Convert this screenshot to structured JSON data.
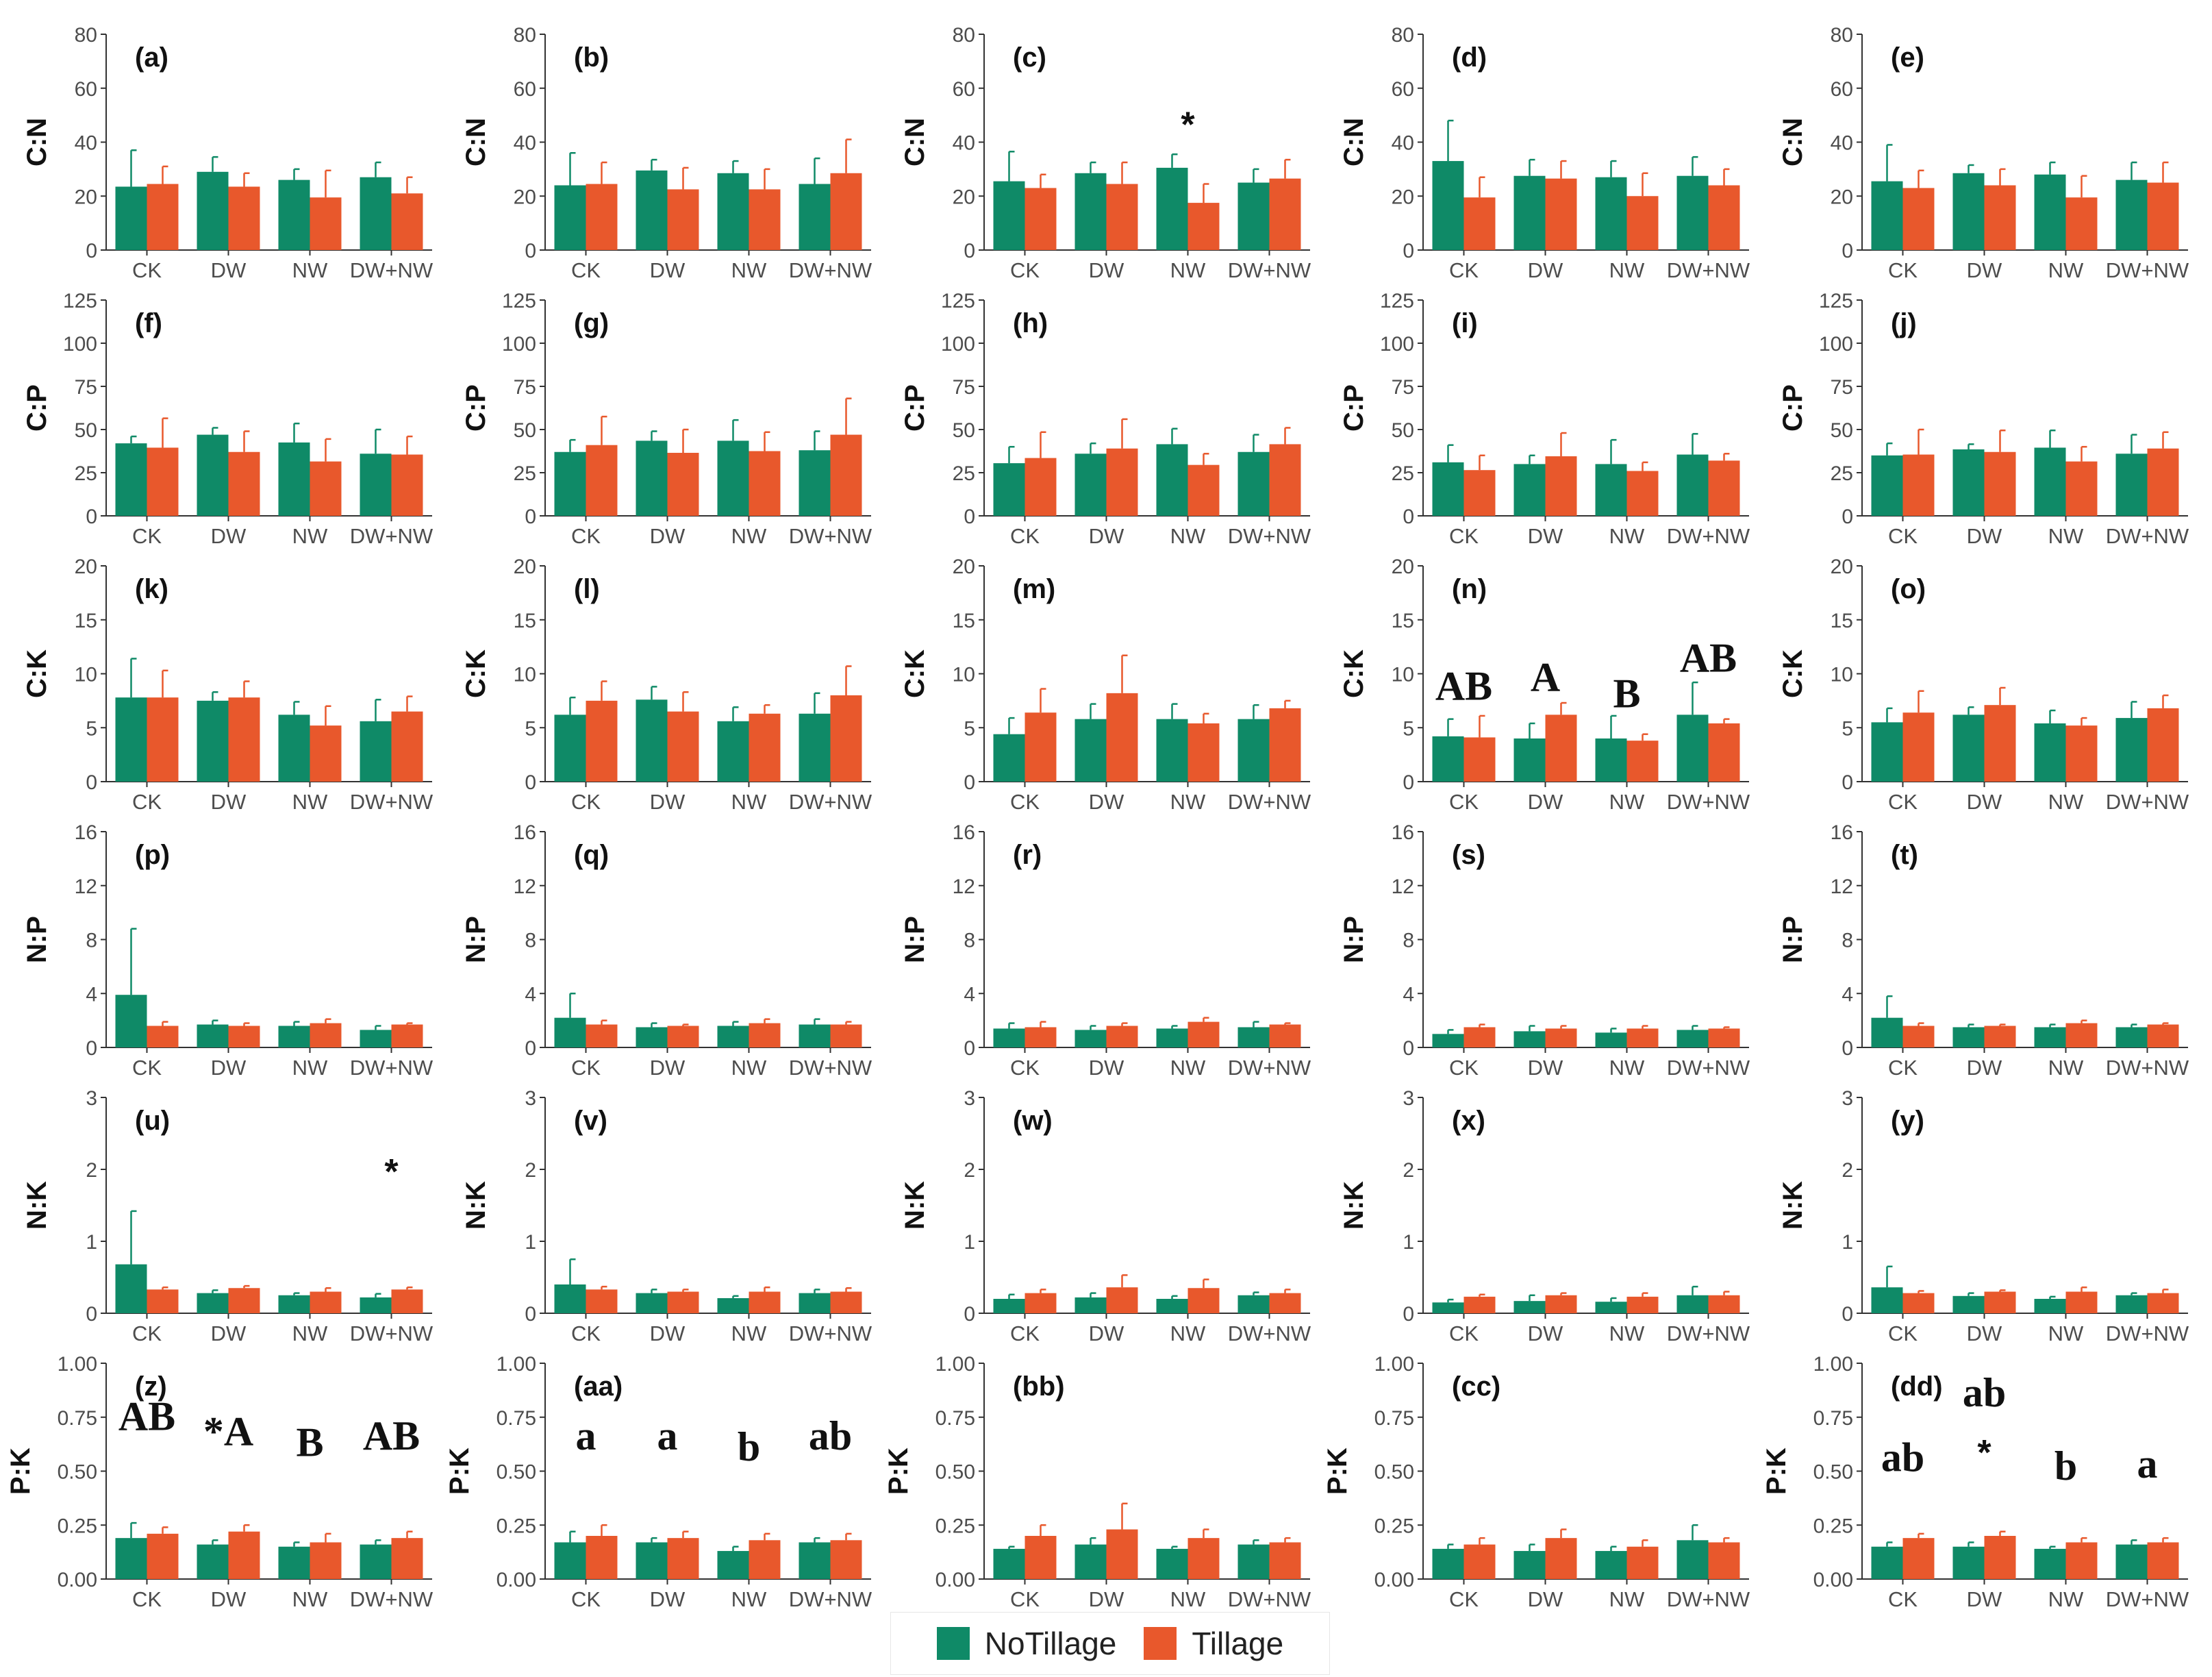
{
  "legend": {
    "items": [
      {
        "label": "NoTillage",
        "color": "#0f8a67"
      },
      {
        "label": "Tillage",
        "color": "#e8582c"
      }
    ]
  },
  "chart_data": {
    "type": "bar",
    "categories": [
      "CK",
      "DW",
      "NW",
      "DW+NW"
    ],
    "series_names": [
      "NoTillage",
      "Tillage"
    ],
    "rows": [
      {
        "ylabel": "C:N",
        "ylim": [
          0,
          80
        ],
        "ticks": [
          0,
          20,
          40,
          60,
          80
        ],
        "tick_labels": [
          "0",
          "20",
          "40",
          "60",
          "80"
        ]
      },
      {
        "ylabel": "C:P",
        "ylim": [
          0,
          125
        ],
        "ticks": [
          0,
          25,
          50,
          75,
          100,
          125
        ],
        "tick_labels": [
          "0",
          "25",
          "50",
          "75",
          "100",
          "125"
        ]
      },
      {
        "ylabel": "C:K",
        "ylim": [
          0,
          20
        ],
        "ticks": [
          0,
          5,
          10,
          15,
          20
        ],
        "tick_labels": [
          "0",
          "5",
          "10",
          "15",
          "20"
        ]
      },
      {
        "ylabel": "N:P",
        "ylim": [
          0,
          16
        ],
        "ticks": [
          0,
          4,
          8,
          12,
          16
        ],
        "tick_labels": [
          "0",
          "4",
          "8",
          "12",
          "16"
        ]
      },
      {
        "ylabel": "N:K",
        "ylim": [
          0,
          3
        ],
        "ticks": [
          0,
          1,
          2,
          3
        ],
        "tick_labels": [
          "0",
          "1",
          "2",
          "3"
        ]
      },
      {
        "ylabel": "P:K",
        "ylim": [
          0,
          1
        ],
        "ticks": [
          0,
          0.25,
          0.5,
          0.75,
          1
        ],
        "tick_labels": [
          "0.00",
          "0.25",
          "0.50",
          "0.75",
          "1.00"
        ]
      }
    ],
    "panels": [
      {
        "label": "(a)",
        "row": 0,
        "col": 0,
        "notill": [
          23.5,
          29,
          26,
          27
        ],
        "notill_err": [
          13.5,
          5.5,
          4,
          5.5
        ],
        "till": [
          24.5,
          23.5,
          19.5,
          21
        ],
        "till_err": [
          6.5,
          5,
          10,
          6
        ],
        "annotations": []
      },
      {
        "label": "(b)",
        "row": 0,
        "col": 1,
        "notill": [
          24,
          29.5,
          28.5,
          24.5
        ],
        "notill_err": [
          12,
          4,
          4.5,
          9.5
        ],
        "till": [
          24.5,
          22.5,
          22.5,
          28.5
        ],
        "till_err": [
          8,
          8,
          7.5,
          12.5
        ],
        "annotations": []
      },
      {
        "label": "(c)",
        "row": 0,
        "col": 2,
        "notill": [
          25.5,
          28.5,
          30.5,
          25
        ],
        "notill_err": [
          11,
          4,
          5,
          5
        ],
        "till": [
          23,
          24.5,
          17.5,
          26.5
        ],
        "till_err": [
          5,
          8,
          7,
          7
        ],
        "annotations": [
          {
            "text": "*",
            "cat": 2,
            "y": 42,
            "bold": false
          }
        ]
      },
      {
        "label": "(d)",
        "row": 0,
        "col": 3,
        "notill": [
          33,
          27.5,
          27,
          27.5
        ],
        "notill_err": [
          15,
          6,
          6,
          7
        ],
        "till": [
          19.5,
          26.5,
          20,
          24
        ],
        "till_err": [
          7.5,
          6.5,
          8.5,
          6
        ],
        "annotations": []
      },
      {
        "label": "(e)",
        "row": 0,
        "col": 4,
        "notill": [
          25.5,
          28.5,
          28,
          26
        ],
        "notill_err": [
          13.5,
          3,
          4.5,
          6.5
        ],
        "till": [
          23,
          24,
          19.5,
          25
        ],
        "till_err": [
          6.5,
          6,
          8,
          7.5
        ],
        "annotations": []
      },
      {
        "label": "(f)",
        "row": 1,
        "col": 0,
        "notill": [
          42,
          47,
          42.5,
          36
        ],
        "notill_err": [
          4,
          4,
          11,
          14
        ],
        "till": [
          39.5,
          37,
          31.5,
          35.5
        ],
        "till_err": [
          17,
          12,
          13,
          10.5
        ],
        "annotations": []
      },
      {
        "label": "(g)",
        "row": 1,
        "col": 1,
        "notill": [
          37,
          43.5,
          43.5,
          38
        ],
        "notill_err": [
          7,
          5.5,
          12,
          11
        ],
        "till": [
          41,
          36.5,
          37.5,
          47
        ],
        "till_err": [
          16.5,
          13.5,
          11,
          21
        ],
        "annotations": []
      },
      {
        "label": "(h)",
        "row": 1,
        "col": 2,
        "notill": [
          30.5,
          36,
          41.5,
          37
        ],
        "notill_err": [
          9.5,
          6,
          9,
          10
        ],
        "till": [
          33.5,
          39,
          29.5,
          41.5
        ],
        "till_err": [
          15,
          17,
          6.5,
          9.5
        ],
        "annotations": []
      },
      {
        "label": "(i)",
        "row": 1,
        "col": 3,
        "notill": [
          31,
          30,
          30,
          35.5
        ],
        "notill_err": [
          10,
          5,
          14,
          12
        ],
        "till": [
          26.5,
          34.5,
          26,
          32
        ],
        "till_err": [
          8.5,
          13.5,
          5,
          4
        ],
        "annotations": []
      },
      {
        "label": "(j)",
        "row": 1,
        "col": 4,
        "notill": [
          35,
          38.5,
          39.5,
          36
        ],
        "notill_err": [
          7,
          3,
          10,
          11
        ],
        "till": [
          35.5,
          37,
          31.5,
          39
        ],
        "till_err": [
          14.5,
          12.5,
          8.5,
          9.5
        ],
        "annotations": []
      },
      {
        "label": "(k)",
        "row": 2,
        "col": 0,
        "notill": [
          7.8,
          7.5,
          6.2,
          5.6
        ],
        "notill_err": [
          3.6,
          0.8,
          1.2,
          2
        ],
        "till": [
          7.8,
          7.8,
          5.2,
          6.5
        ],
        "till_err": [
          2.5,
          1.5,
          1.8,
          1.4
        ],
        "annotations": []
      },
      {
        "label": "(l)",
        "row": 2,
        "col": 1,
        "notill": [
          6.2,
          7.6,
          5.6,
          6.3
        ],
        "notill_err": [
          1.6,
          1.2,
          1.3,
          1.9
        ],
        "till": [
          7.5,
          6.5,
          6.3,
          8
        ],
        "till_err": [
          1.8,
          1.8,
          0.8,
          2.7
        ],
        "annotations": []
      },
      {
        "label": "(m)",
        "row": 2,
        "col": 2,
        "notill": [
          4.4,
          5.8,
          5.8,
          5.8
        ],
        "notill_err": [
          1.5,
          1.4,
          1.4,
          1.3
        ],
        "till": [
          6.4,
          8.2,
          5.4,
          6.8
        ],
        "till_err": [
          2.2,
          3.5,
          0.9,
          0.7
        ],
        "annotations": []
      },
      {
        "label": "(n)",
        "row": 2,
        "col": 3,
        "notill": [
          4.2,
          4,
          4,
          6.2
        ],
        "notill_err": [
          1.6,
          1.4,
          2.1,
          3
        ],
        "till": [
          4.1,
          6.2,
          3.8,
          5.4
        ],
        "till_err": [
          2,
          1.1,
          0.6,
          0.4
        ],
        "annotations": [
          {
            "text": "AB",
            "cat": 0,
            "y": 7.6,
            "bold": true
          },
          {
            "text": "A",
            "cat": 1,
            "y": 8.4,
            "bold": true
          },
          {
            "text": "B",
            "cat": 2,
            "y": 6.9,
            "bold": true
          },
          {
            "text": "AB",
            "cat": 3,
            "y": 10.2,
            "bold": true
          }
        ]
      },
      {
        "label": "(o)",
        "row": 2,
        "col": 4,
        "notill": [
          5.5,
          6.2,
          5.4,
          5.9
        ],
        "notill_err": [
          1.3,
          0.7,
          1.2,
          1.5
        ],
        "till": [
          6.4,
          7.1,
          5.2,
          6.8
        ],
        "till_err": [
          2,
          1.6,
          0.7,
          1.2
        ],
        "annotations": []
      },
      {
        "label": "(p)",
        "row": 3,
        "col": 0,
        "notill": [
          3.9,
          1.7,
          1.6,
          1.3
        ],
        "notill_err": [
          4.9,
          0.3,
          0.3,
          0.3
        ],
        "till": [
          1.6,
          1.6,
          1.8,
          1.7
        ],
        "till_err": [
          0.3,
          0.2,
          0.3,
          0.1
        ],
        "annotations": []
      },
      {
        "label": "(q)",
        "row": 3,
        "col": 1,
        "notill": [
          2.2,
          1.5,
          1.6,
          1.7
        ],
        "notill_err": [
          1.8,
          0.3,
          0.3,
          0.4
        ],
        "till": [
          1.7,
          1.6,
          1.8,
          1.7
        ],
        "till_err": [
          0.3,
          0.1,
          0.3,
          0.2
        ],
        "annotations": []
      },
      {
        "label": "(r)",
        "row": 3,
        "col": 2,
        "notill": [
          1.4,
          1.3,
          1.4,
          1.5
        ],
        "notill_err": [
          0.4,
          0.3,
          0.2,
          0.4
        ],
        "till": [
          1.5,
          1.6,
          1.9,
          1.7
        ],
        "till_err": [
          0.4,
          0.2,
          0.3,
          0.1
        ],
        "annotations": []
      },
      {
        "label": "(s)",
        "row": 3,
        "col": 3,
        "notill": [
          1,
          1.2,
          1.1,
          1.3
        ],
        "notill_err": [
          0.3,
          0.4,
          0.3,
          0.3
        ],
        "till": [
          1.5,
          1.4,
          1.4,
          1.4
        ],
        "till_err": [
          0.2,
          0.2,
          0.2,
          0.1
        ],
        "annotations": []
      },
      {
        "label": "(t)",
        "row": 3,
        "col": 4,
        "notill": [
          2.2,
          1.5,
          1.5,
          1.5
        ],
        "notill_err": [
          1.6,
          0.2,
          0.2,
          0.2
        ],
        "till": [
          1.6,
          1.6,
          1.8,
          1.7
        ],
        "till_err": [
          0.2,
          0.1,
          0.2,
          0.1
        ],
        "annotations": []
      },
      {
        "label": "(u)",
        "row": 4,
        "col": 0,
        "notill": [
          0.68,
          0.28,
          0.25,
          0.22
        ],
        "notill_err": [
          0.74,
          0.04,
          0.03,
          0.05
        ],
        "till": [
          0.33,
          0.35,
          0.3,
          0.33
        ],
        "till_err": [
          0.03,
          0.03,
          0.05,
          0.03
        ],
        "annotations": [
          {
            "text": "*",
            "cat": 3,
            "y": 1.8,
            "bold": false
          }
        ]
      },
      {
        "label": "(v)",
        "row": 4,
        "col": 1,
        "notill": [
          0.4,
          0.28,
          0.21,
          0.28
        ],
        "notill_err": [
          0.35,
          0.05,
          0.03,
          0.05
        ],
        "till": [
          0.33,
          0.3,
          0.3,
          0.3
        ],
        "till_err": [
          0.04,
          0.03,
          0.06,
          0.05
        ],
        "annotations": []
      },
      {
        "label": "(w)",
        "row": 4,
        "col": 2,
        "notill": [
          0.2,
          0.22,
          0.2,
          0.25
        ],
        "notill_err": [
          0.06,
          0.06,
          0.04,
          0.04
        ],
        "till": [
          0.28,
          0.36,
          0.35,
          0.28
        ],
        "till_err": [
          0.05,
          0.17,
          0.12,
          0.05
        ],
        "annotations": []
      },
      {
        "label": "(x)",
        "row": 4,
        "col": 3,
        "notill": [
          0.15,
          0.17,
          0.16,
          0.25
        ],
        "notill_err": [
          0.04,
          0.08,
          0.05,
          0.12
        ],
        "till": [
          0.23,
          0.25,
          0.23,
          0.25
        ],
        "till_err": [
          0.03,
          0.03,
          0.05,
          0.05
        ],
        "annotations": []
      },
      {
        "label": "(y)",
        "row": 4,
        "col": 4,
        "notill": [
          0.36,
          0.24,
          0.2,
          0.25
        ],
        "notill_err": [
          0.29,
          0.04,
          0.03,
          0.03
        ],
        "till": [
          0.28,
          0.3,
          0.3,
          0.28
        ],
        "till_err": [
          0.03,
          0.02,
          0.06,
          0.05
        ],
        "annotations": []
      },
      {
        "label": "(z)",
        "row": 5,
        "col": 0,
        "notill": [
          0.19,
          0.16,
          0.15,
          0.16
        ],
        "notill_err": [
          0.07,
          0.02,
          0.02,
          0.02
        ],
        "till": [
          0.21,
          0.22,
          0.17,
          0.19
        ],
        "till_err": [
          0.03,
          0.03,
          0.04,
          0.03
        ],
        "annotations": [
          {
            "text": "AB",
            "cat": 0,
            "y": 0.69,
            "bold": true
          },
          {
            "text": "*A",
            "cat": 1,
            "y": 0.62,
            "bold": true
          },
          {
            "text": "B",
            "cat": 2,
            "y": 0.57,
            "bold": true
          },
          {
            "text": "AB",
            "cat": 3,
            "y": 0.6,
            "bold": true
          }
        ]
      },
      {
        "label": "(aa)",
        "row": 5,
        "col": 1,
        "notill": [
          0.17,
          0.17,
          0.13,
          0.17
        ],
        "notill_err": [
          0.05,
          0.02,
          0.02,
          0.02
        ],
        "till": [
          0.2,
          0.19,
          0.18,
          0.18
        ],
        "till_err": [
          0.05,
          0.03,
          0.03,
          0.03
        ],
        "annotations": [
          {
            "text": "a",
            "cat": 0,
            "y": 0.6,
            "bold": true
          },
          {
            "text": "a",
            "cat": 1,
            "y": 0.6,
            "bold": true
          },
          {
            "text": "b",
            "cat": 2,
            "y": 0.55,
            "bold": true
          },
          {
            "text": "ab",
            "cat": 3,
            "y": 0.6,
            "bold": true
          }
        ]
      },
      {
        "label": "(bb)",
        "row": 5,
        "col": 2,
        "notill": [
          0.14,
          0.16,
          0.14,
          0.16
        ],
        "notill_err": [
          0.01,
          0.03,
          0.01,
          0.02
        ],
        "till": [
          0.2,
          0.23,
          0.19,
          0.17
        ],
        "till_err": [
          0.05,
          0.12,
          0.04,
          0.02
        ],
        "annotations": []
      },
      {
        "label": "(cc)",
        "row": 5,
        "col": 3,
        "notill": [
          0.14,
          0.13,
          0.13,
          0.18
        ],
        "notill_err": [
          0.02,
          0.03,
          0.02,
          0.07
        ],
        "till": [
          0.16,
          0.19,
          0.15,
          0.17
        ],
        "till_err": [
          0.03,
          0.04,
          0.03,
          0.02
        ],
        "annotations": []
      },
      {
        "label": "(dd)",
        "row": 5,
        "col": 4,
        "notill": [
          0.15,
          0.15,
          0.14,
          0.16
        ],
        "notill_err": [
          0.02,
          0.02,
          0.01,
          0.02
        ],
        "till": [
          0.19,
          0.2,
          0.17,
          0.17
        ],
        "till_err": [
          0.02,
          0.02,
          0.02,
          0.02
        ],
        "annotations": [
          {
            "text": "ab",
            "cat": 0,
            "y": 0.5,
            "bold": true
          },
          {
            "text": "ab",
            "cat": 1,
            "y": 0.8,
            "bold": true
          },
          {
            "text": "*",
            "cat": 1,
            "y": 0.53,
            "bold": true
          },
          {
            "text": "b",
            "cat": 2,
            "y": 0.46,
            "bold": true
          },
          {
            "text": "a",
            "cat": 3,
            "y": 0.47,
            "bold": true
          }
        ]
      }
    ]
  }
}
